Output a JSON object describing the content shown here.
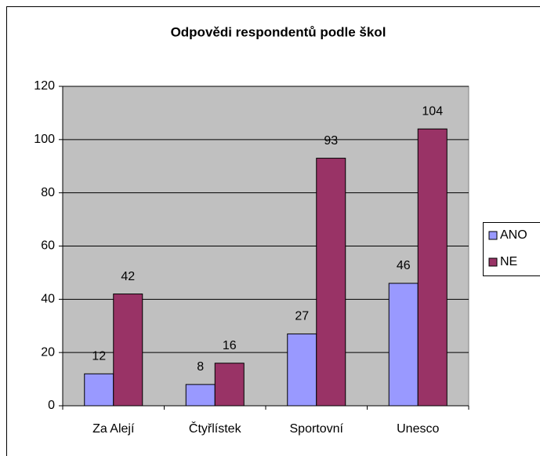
{
  "chart_data": {
    "type": "bar",
    "title": "Odpovědi respondentů podle škol",
    "categories": [
      "Za Alejí",
      "Čtyřlístek",
      "Sportovní",
      "Unesco"
    ],
    "series": [
      {
        "name": "ANO",
        "color": "#9999ff",
        "values": [
          12,
          8,
          27,
          46
        ]
      },
      {
        "name": "NE",
        "color": "#993366",
        "values": [
          42,
          16,
          93,
          104
        ]
      }
    ],
    "ylim": [
      0,
      120
    ],
    "yticks": [
      0,
      20,
      40,
      60,
      80,
      100,
      120
    ],
    "grid": true,
    "legend": "right"
  }
}
